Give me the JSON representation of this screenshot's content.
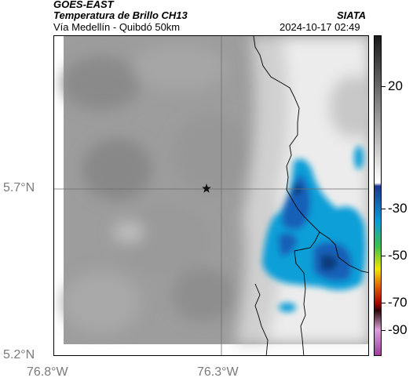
{
  "header": {
    "satellite": "GOES-EAST",
    "product": "Temperatura de Brillo CH13",
    "region": "Vía Medellín - Quibdó 50km",
    "source": "SIATA",
    "datetime": "2024-10-17 02:49"
  },
  "axes": {
    "lat_ticks": [
      "5.7°N",
      "5.2°N"
    ],
    "lon_ticks": [
      "76.8°W",
      "76.3°W"
    ]
  },
  "colorbar": {
    "labels": [
      "20",
      "-30",
      "-50",
      "-70",
      "-90"
    ],
    "palette": [
      "#1a1a1a",
      "#ffffff",
      "#1b3a8a",
      "#0a9bd8",
      "#3bc24a",
      "#f2e600",
      "#e36b00",
      "#a00000",
      "#2a0a0a",
      "#d9a0d9",
      "#a040a0"
    ]
  },
  "map": {
    "marker": "star-icon",
    "colors": {
      "gray_dark": "#8a8a8a",
      "gray_mid": "#a8a8a8",
      "cloud_white": "#f2f2f2",
      "cold_blue": "#1560b8",
      "cold_cyan": "#0a9fd8",
      "cold_navy": "#103a7a",
      "border": "#000000"
    }
  }
}
